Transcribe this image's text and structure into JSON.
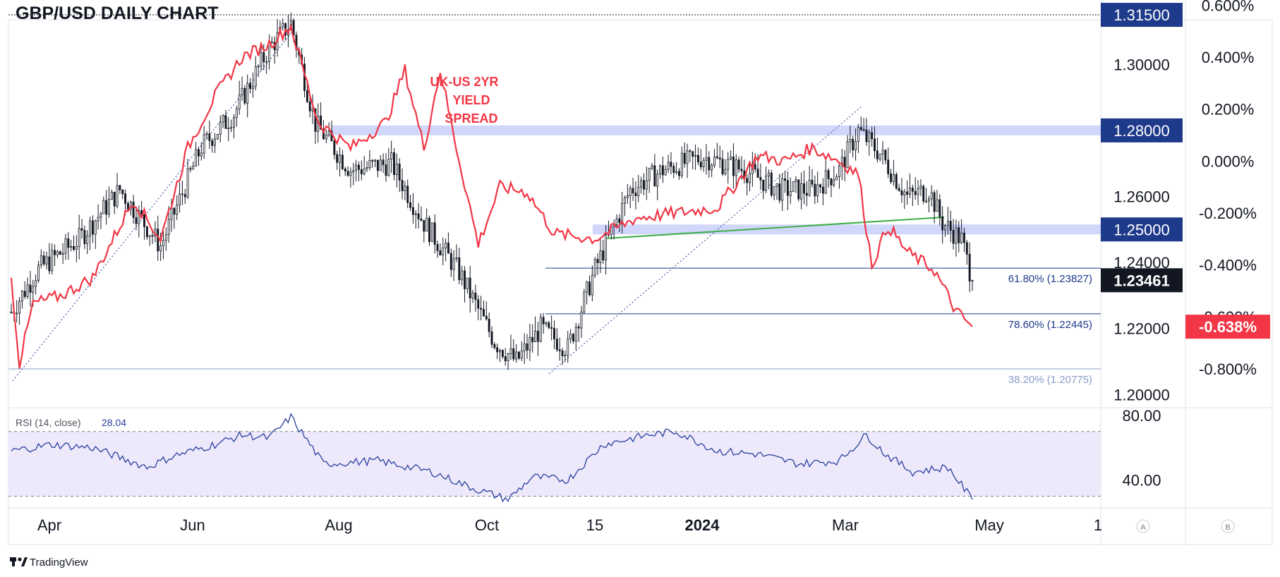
{
  "header": {
    "title": "GBP/USD DAILY CHART"
  },
  "annotation": {
    "line1": "UK-US 2YR",
    "line2": "YIELD",
    "line3": "SPREAD"
  },
  "branding": {
    "logo": "TradingView"
  },
  "axis_buttons": {
    "a": "A",
    "b": "B"
  },
  "colors": {
    "candle": "#131722",
    "spread": "#f23645",
    "zone": "#5b6df0",
    "label_blue": "#1e3a8a",
    "fib": "#1e3a8a",
    "fib_382": "#8a9bc7",
    "trend_green": "#3fae49",
    "rsi_line": "#2a3f9e",
    "rsi_band": "#ede9fb"
  },
  "chart_data": [
    {
      "type": "candlestick",
      "title": "GBP/USD DAILY CHART",
      "x_ticks": [
        "Apr",
        "Jun",
        "Aug",
        "Oct",
        "15",
        "2024",
        "Mar",
        "May",
        "1"
      ],
      "y_ticks": [
        "1.30000",
        "1.28000",
        "1.26000",
        "1.24000",
        "1.22000",
        "1.20000"
      ],
      "ylim": [
        1.196,
        1.3195
      ],
      "price_labels": [
        {
          "label": "1.31500",
          "value": 1.315,
          "kind": "level"
        },
        {
          "label": "1.28000",
          "value": 1.28,
          "kind": "zone"
        },
        {
          "label": "1.25000",
          "value": 1.25,
          "kind": "zone"
        },
        {
          "label": "1.23461",
          "value": 1.23461,
          "kind": "last"
        }
      ],
      "fib_levels": [
        {
          "label": "61.80% (1.23827)",
          "value": 1.23827
        },
        {
          "label": "78.60% (1.22445)",
          "value": 1.22445
        },
        {
          "label": "38.20% (1.20775)",
          "value": 1.20775
        }
      ],
      "key_points": [
        {
          "t": 0,
          "v": 1.225
        },
        {
          "t": 10,
          "v": 1.238
        },
        {
          "t": 25,
          "v": 1.247
        },
        {
          "t": 40,
          "v": 1.262
        },
        {
          "t": 55,
          "v": 1.245
        },
        {
          "t": 70,
          "v": 1.275
        },
        {
          "t": 82,
          "v": 1.285
        },
        {
          "t": 95,
          "v": 1.305
        },
        {
          "t": 103,
          "v": 1.3125
        },
        {
          "t": 112,
          "v": 1.282
        },
        {
          "t": 125,
          "v": 1.268
        },
        {
          "t": 140,
          "v": 1.27
        },
        {
          "t": 152,
          "v": 1.252
        },
        {
          "t": 165,
          "v": 1.237
        },
        {
          "t": 178,
          "v": 1.216
        },
        {
          "t": 186,
          "v": 1.21
        },
        {
          "t": 195,
          "v": 1.22
        },
        {
          "t": 205,
          "v": 1.214
        },
        {
          "t": 215,
          "v": 1.238
        },
        {
          "t": 228,
          "v": 1.262
        },
        {
          "t": 240,
          "v": 1.268
        },
        {
          "t": 255,
          "v": 1.272
        },
        {
          "t": 270,
          "v": 1.268
        },
        {
          "t": 283,
          "v": 1.262
        },
        {
          "t": 295,
          "v": 1.262
        },
        {
          "t": 305,
          "v": 1.268
        },
        {
          "t": 312,
          "v": 1.28
        },
        {
          "t": 320,
          "v": 1.273
        },
        {
          "t": 330,
          "v": 1.26
        },
        {
          "t": 338,
          "v": 1.262
        },
        {
          "t": 343,
          "v": 1.252
        },
        {
          "t": 350,
          "v": 1.247
        },
        {
          "t": 354,
          "v": 1.2346
        }
      ]
    },
    {
      "type": "line",
      "series": [
        {
          "name": "UK-US 2YR YIELD SPREAD"
        }
      ],
      "y_ticks": [
        "0.600%",
        "0.400%",
        "0.200%",
        "0.000%",
        "-0.200%",
        "-0.400%",
        "-0.600%",
        "-0.800%"
      ],
      "last_value_label": "-0.638%",
      "last_value": -0.638,
      "ylim": [
        -0.95,
        0.62
      ],
      "key_points": [
        {
          "t": 0,
          "v": -0.45
        },
        {
          "t": 3,
          "v": -0.78
        },
        {
          "t": 8,
          "v": -0.55
        },
        {
          "t": 18,
          "v": -0.52
        },
        {
          "t": 30,
          "v": -0.45
        },
        {
          "t": 45,
          "v": -0.15
        },
        {
          "t": 55,
          "v": -0.3
        },
        {
          "t": 65,
          "v": 0.05
        },
        {
          "t": 75,
          "v": 0.25
        },
        {
          "t": 85,
          "v": 0.4
        },
        {
          "t": 95,
          "v": 0.45
        },
        {
          "t": 103,
          "v": 0.52
        },
        {
          "t": 113,
          "v": 0.15
        },
        {
          "t": 125,
          "v": 0.05
        },
        {
          "t": 138,
          "v": 0.15
        },
        {
          "t": 145,
          "v": 0.35
        },
        {
          "t": 152,
          "v": 0.05
        },
        {
          "t": 158,
          "v": 0.35
        },
        {
          "t": 164,
          "v": 0.05
        },
        {
          "t": 172,
          "v": -0.32
        },
        {
          "t": 180,
          "v": -0.1
        },
        {
          "t": 190,
          "v": -0.12
        },
        {
          "t": 200,
          "v": -0.28
        },
        {
          "t": 215,
          "v": -0.3
        },
        {
          "t": 230,
          "v": -0.22
        },
        {
          "t": 245,
          "v": -0.2
        },
        {
          "t": 260,
          "v": -0.18
        },
        {
          "t": 275,
          "v": 0.02
        },
        {
          "t": 285,
          "v": 0.0
        },
        {
          "t": 295,
          "v": 0.05
        },
        {
          "t": 305,
          "v": 0.0
        },
        {
          "t": 312,
          "v": -0.05
        },
        {
          "t": 317,
          "v": -0.4
        },
        {
          "t": 323,
          "v": -0.25
        },
        {
          "t": 330,
          "v": -0.35
        },
        {
          "t": 340,
          "v": -0.42
        },
        {
          "t": 348,
          "v": -0.58
        },
        {
          "t": 354,
          "v": -0.638
        }
      ]
    },
    {
      "type": "line",
      "title": "RSI (14, close)",
      "legend_label": "RSI (14, close)",
      "last_value_label": "28.04",
      "last_value": 28.04,
      "y_ticks": [
        "80.00",
        "40.00"
      ],
      "ylim": [
        25,
        83
      ],
      "bands": [
        30,
        70
      ],
      "key_points": [
        {
          "t": 0,
          "v": 58
        },
        {
          "t": 15,
          "v": 62
        },
        {
          "t": 30,
          "v": 60
        },
        {
          "t": 50,
          "v": 48
        },
        {
          "t": 60,
          "v": 55
        },
        {
          "t": 75,
          "v": 62
        },
        {
          "t": 85,
          "v": 68
        },
        {
          "t": 95,
          "v": 66
        },
        {
          "t": 103,
          "v": 79
        },
        {
          "t": 115,
          "v": 50
        },
        {
          "t": 135,
          "v": 52
        },
        {
          "t": 155,
          "v": 45
        },
        {
          "t": 170,
          "v": 35
        },
        {
          "t": 183,
          "v": 28
        },
        {
          "t": 192,
          "v": 42
        },
        {
          "t": 205,
          "v": 40
        },
        {
          "t": 218,
          "v": 62
        },
        {
          "t": 235,
          "v": 68
        },
        {
          "t": 245,
          "v": 70
        },
        {
          "t": 260,
          "v": 58
        },
        {
          "t": 275,
          "v": 56
        },
        {
          "t": 290,
          "v": 50
        },
        {
          "t": 305,
          "v": 52
        },
        {
          "t": 315,
          "v": 68
        },
        {
          "t": 322,
          "v": 56
        },
        {
          "t": 332,
          "v": 45
        },
        {
          "t": 345,
          "v": 48
        },
        {
          "t": 354,
          "v": 28.04
        }
      ]
    }
  ]
}
